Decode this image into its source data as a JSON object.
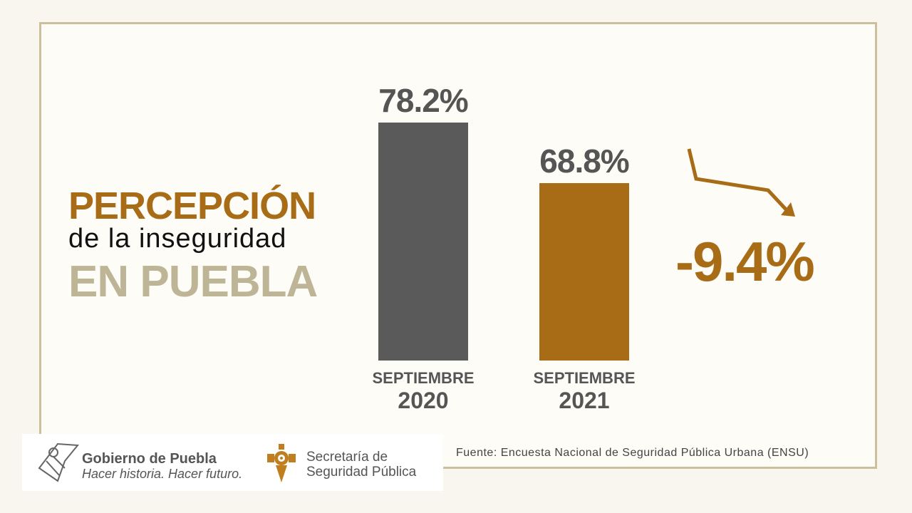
{
  "title": {
    "line1": "PERCEPCIÓN",
    "line2": "de la inseguridad",
    "line3": "EN PUEBLA"
  },
  "chart_data": {
    "type": "bar",
    "categories": [
      {
        "month": "SEPTIEMBRE",
        "year": "2020"
      },
      {
        "month": "SEPTIEMBRE",
        "year": "2021"
      }
    ],
    "values": [
      78.2,
      68.8
    ],
    "labels": [
      "78.2%",
      "68.8%"
    ],
    "colors": [
      "#5a5a5a",
      "#a86c17"
    ],
    "ylim": [
      41.3,
      80
    ],
    "annotation": "-9.4%",
    "annotation_icon": "down-trend-arrow-icon",
    "grid": false
  },
  "footer": {
    "source": "Fuente: Encuesta Nacional de Seguridad Pública Urbana (ENSU)",
    "logo1_name": "Gobierno de Puebla",
    "logo1_slogan": "Hacer historia. Hacer futuro.",
    "logo2_line1": "Secretaría de",
    "logo2_line2": "Seguridad Pública"
  },
  "colors": {
    "accent": "#a86c17",
    "gray": "#5a5a5a",
    "tan": "#bdb596",
    "border": "#cbbf9c"
  }
}
